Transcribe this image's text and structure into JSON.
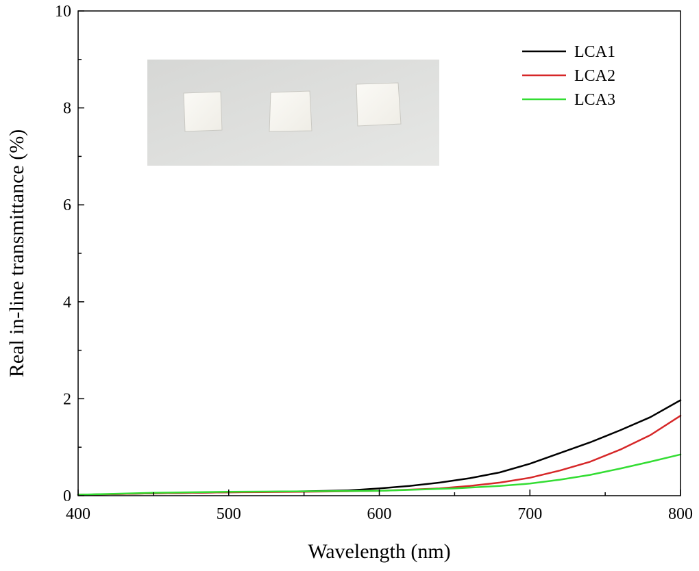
{
  "chart_data": {
    "type": "line",
    "xlabel": "Wavelength (nm)",
    "ylabel": "Real in-line transmittance (%)",
    "xlim": [
      400,
      800
    ],
    "ylim": [
      0,
      10
    ],
    "x_ticks": [
      400,
      500,
      600,
      700,
      800
    ],
    "y_ticks": [
      0,
      2,
      4,
      6,
      8,
      10
    ],
    "grid": false,
    "legend_position": "top-right",
    "inset_image": "photo of three white square ceramic samples on a grey background",
    "series": [
      {
        "name": "LCA1",
        "color": "#000000",
        "x": [
          400,
          450,
          500,
          550,
          580,
          600,
          620,
          640,
          660,
          680,
          700,
          720,
          740,
          760,
          780,
          800
        ],
        "y": [
          0.02,
          0.05,
          0.07,
          0.09,
          0.11,
          0.15,
          0.2,
          0.27,
          0.36,
          0.48,
          0.66,
          0.88,
          1.1,
          1.35,
          1.62,
          1.97
        ]
      },
      {
        "name": "LCA2",
        "color": "#d62728",
        "x": [
          400,
          450,
          500,
          550,
          600,
          640,
          660,
          680,
          700,
          720,
          740,
          760,
          780,
          800
        ],
        "y": [
          0.02,
          0.05,
          0.07,
          0.08,
          0.1,
          0.15,
          0.2,
          0.27,
          0.37,
          0.52,
          0.7,
          0.95,
          1.25,
          1.65
        ]
      },
      {
        "name": "LCA3",
        "color": "#33dd33",
        "x": [
          400,
          450,
          500,
          550,
          600,
          650,
          680,
          700,
          720,
          740,
          760,
          780,
          800
        ],
        "y": [
          0.02,
          0.06,
          0.08,
          0.09,
          0.1,
          0.15,
          0.2,
          0.25,
          0.33,
          0.43,
          0.56,
          0.7,
          0.85
        ]
      }
    ]
  }
}
